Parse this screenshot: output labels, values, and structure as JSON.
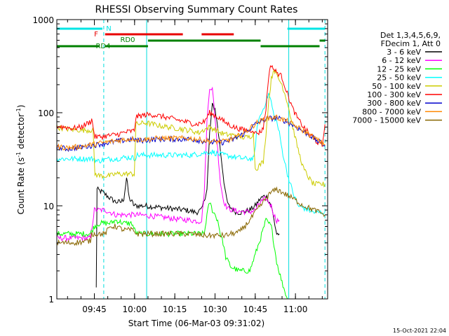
{
  "chart_data": {
    "type": "line",
    "title": "RHESSI Observing Summary Count Rates",
    "xlabel": "Start Time (06-Mar-03 09:31:02)",
    "ylabel_main": "Count Rate (s",
    "ylabel_sup": "-1",
    "ylabel_tail": " detector",
    "ylabel_end": ")",
    "y_scale": "log",
    "ylim": [
      1,
      1000
    ],
    "x_units": "minutes after 09:31:02",
    "xlim": [
      0,
      101
    ],
    "x_ticks": [
      {
        "t": 14,
        "label": "09:45"
      },
      {
        "t": 29,
        "label": "10:00"
      },
      {
        "t": 44,
        "label": "10:15"
      },
      {
        "t": 59,
        "label": "10:30"
      },
      {
        "t": 74,
        "label": "10:45"
      },
      {
        "t": 89,
        "label": "11:00"
      }
    ],
    "y_ticks": [
      {
        "v": 1,
        "label": "1"
      },
      {
        "v": 10,
        "label": "10"
      },
      {
        "v": 100,
        "label": "100"
      },
      {
        "v": 1000,
        "label": "1000"
      }
    ],
    "legend_header": [
      "Det 1,3,4,5,6,9,",
      "FDecim 1, Att 0"
    ],
    "legend_position": "right",
    "series": [
      {
        "name": "3 - 6 keV",
        "color": "#000000",
        "t": [
          14.7,
          15,
          17,
          20,
          22,
          24,
          25,
          26,
          27,
          28,
          28.9,
          33,
          40,
          48,
          52,
          54,
          56,
          57,
          58,
          59,
          60,
          61,
          62,
          63,
          64,
          65,
          66,
          67,
          69,
          72,
          74,
          76,
          78,
          80,
          81,
          82,
          83
        ],
        "v": [
          1.3,
          15,
          14,
          12,
          11,
          11,
          12,
          20,
          12,
          11,
          10,
          10,
          9.5,
          9,
          8.5,
          9,
          15,
          60,
          120,
          110,
          70,
          40,
          22,
          13,
          10,
          9.5,
          9,
          8.5,
          8.5,
          9,
          10,
          12,
          13,
          10,
          7,
          5,
          5
        ]
      },
      {
        "name": "6 - 12 keV",
        "color": "#ff00ff",
        "t": [
          0,
          12.5,
          14,
          18,
          22,
          26,
          28,
          30,
          35,
          40,
          45,
          50,
          53,
          54,
          55,
          56,
          57,
          58,
          59,
          60,
          61,
          62,
          63,
          64,
          65,
          68,
          72,
          74,
          76,
          78,
          80,
          81,
          82,
          83
        ],
        "v": [
          4.5,
          4.5,
          9,
          9,
          8,
          8,
          8,
          8,
          7.8,
          7.5,
          7.2,
          7,
          6.8,
          7,
          14,
          80,
          190,
          180,
          90,
          40,
          18,
          12,
          10,
          9.3,
          9.1,
          8.7,
          8.6,
          9,
          11,
          12,
          10,
          8,
          7,
          7
        ]
      },
      {
        "name": "12 - 25 keV",
        "color": "#00ff00",
        "t": [
          0,
          12.5,
          14,
          16,
          20,
          22,
          25,
          28,
          29,
          30,
          40,
          50,
          55,
          56,
          57,
          58,
          59,
          60,
          61,
          62,
          63,
          65,
          68,
          72,
          74,
          76,
          78,
          80,
          82,
          84,
          86
        ],
        "v": [
          5,
          5,
          6,
          6.5,
          6.5,
          7,
          6.5,
          6.5,
          5.5,
          5,
          5,
          5,
          5,
          8,
          11,
          9,
          8,
          7,
          5,
          4,
          2.8,
          2.2,
          2,
          2,
          3,
          4.5,
          7,
          6,
          2.5,
          1.5,
          1
        ]
      },
      {
        "name": "25 - 50 keV",
        "color": "#00ffff",
        "t": [
          0,
          14,
          15,
          17,
          20,
          22,
          25,
          28,
          29,
          30,
          35,
          40,
          45,
          50,
          55,
          58,
          60,
          65,
          70,
          72,
          73.5,
          75,
          77,
          79,
          80,
          81,
          82,
          83,
          84,
          86,
          88,
          90,
          96,
          98,
          100
        ],
        "v": [
          32,
          32,
          30,
          31,
          32,
          32,
          33,
          33,
          32,
          35,
          35,
          35,
          35,
          35,
          37,
          38,
          36,
          34,
          32,
          32,
          32,
          80,
          110,
          160,
          130,
          90,
          80,
          60,
          40,
          22,
          14,
          10,
          8.5,
          8.5,
          8.5
        ]
      },
      {
        "name": "50 - 100 keV",
        "color": "#cccc00",
        "t": [
          0,
          5,
          10,
          13.5,
          14.2,
          16,
          20,
          22,
          24,
          26,
          28.9,
          29.5,
          33,
          37,
          40,
          45,
          50,
          53,
          55,
          57,
          59,
          61,
          63,
          65,
          67,
          70,
          72,
          73.3,
          74,
          75,
          77,
          78,
          79,
          80,
          81,
          82,
          84,
          86,
          88,
          90,
          92,
          94,
          95,
          96,
          98,
          100
        ],
        "v": [
          70,
          66,
          65,
          65,
          22,
          21,
          21,
          22,
          22,
          22,
          22,
          75,
          78,
          74,
          71,
          68,
          64,
          61,
          66,
          70,
          66,
          61,
          58,
          58,
          56,
          54,
          55,
          60,
          25,
          26,
          30,
          60,
          130,
          230,
          300,
          250,
          200,
          130,
          70,
          40,
          25,
          20,
          18,
          17,
          17,
          17
        ]
      },
      {
        "name": "100 - 300 keV",
        "color": "#ff0000",
        "t": [
          0,
          3,
          6,
          9,
          12.5,
          13,
          14.2,
          16,
          20,
          22,
          24,
          26,
          28.9,
          29.5,
          33,
          36,
          40,
          44,
          48,
          52,
          55,
          57,
          60,
          63,
          66,
          69,
          72,
          73.3,
          74,
          76,
          77,
          78,
          79,
          80,
          81,
          82,
          83,
          84,
          86,
          88,
          90,
          92,
          94,
          96,
          98,
          99,
          100
        ],
        "v": [
          72,
          70,
          68,
          70,
          80,
          85,
          55,
          55,
          57,
          58,
          60,
          62,
          64,
          90,
          95,
          95,
          90,
          85,
          80,
          75,
          80,
          100,
          90,
          78,
          70,
          66,
          64,
          66,
          60,
          62,
          70,
          110,
          250,
          330,
          290,
          270,
          260,
          240,
          160,
          110,
          85,
          70,
          60,
          52,
          46,
          44,
          75
        ]
      },
      {
        "name": "300 - 800 keV",
        "color": "#0000cc",
        "t": [
          0,
          4,
          8,
          12,
          14.2,
          16,
          20,
          24,
          28.9,
          30,
          34,
          38,
          42,
          46,
          50,
          54,
          58,
          62,
          66,
          70,
          74,
          78,
          82,
          86,
          90,
          94,
          98,
          100
        ],
        "v": [
          42,
          41,
          42,
          44,
          45,
          46,
          48,
          50,
          52,
          50,
          51,
          52,
          52,
          52,
          52,
          50,
          48,
          48,
          52,
          60,
          75,
          86,
          88,
          80,
          68,
          58,
          48,
          45
        ]
      },
      {
        "name": "800 - 7000 keV",
        "color": "#ff8800",
        "t": [
          0,
          4,
          8,
          12,
          14.2,
          16,
          20,
          24,
          28.9,
          30,
          34,
          38,
          42,
          46,
          50,
          54,
          58,
          62,
          66,
          70,
          74,
          78,
          82,
          86,
          90,
          94,
          98,
          100
        ],
        "v": [
          43,
          42,
          43,
          45,
          46,
          47,
          49,
          51,
          53,
          51,
          52,
          53,
          53,
          53,
          53,
          51,
          49,
          49,
          53,
          61,
          76,
          87,
          89,
          81,
          69,
          59,
          49,
          46
        ]
      },
      {
        "name": "7000 - 15000 keV",
        "color": "#886600",
        "t": [
          0,
          5,
          10,
          12.5,
          13,
          15,
          18,
          20,
          22,
          25,
          28,
          30,
          35,
          40,
          45,
          50,
          55,
          60,
          63,
          65,
          68,
          70,
          72,
          74,
          76,
          78,
          80,
          82,
          84,
          86,
          88,
          90,
          92,
          94,
          96,
          98,
          100
        ],
        "v": [
          4,
          4,
          4.1,
          4.2,
          5,
          5,
          5,
          6,
          6,
          5.5,
          5.5,
          5,
          5,
          5,
          5,
          5,
          4.8,
          4.8,
          4.8,
          5,
          5.2,
          6,
          7,
          8.5,
          10,
          12,
          14,
          15,
          14,
          13,
          12,
          11,
          10,
          9.5,
          9,
          8.5,
          8
        ]
      }
    ],
    "flags": [
      {
        "label": "N",
        "color": "#00e5e5",
        "segments": [
          [
            0,
            17
          ],
          [
            86,
            100
          ]
        ]
      },
      {
        "label": "F",
        "color": "#e80000",
        "segments": [
          [
            18,
            47
          ],
          [
            54,
            66
          ]
        ]
      },
      {
        "label": "RD0",
        "color": "#008000",
        "segments": [
          [
            34,
            76
          ],
          [
            98,
            100
          ]
        ]
      },
      {
        "label": "RD4",
        "color": "#008000",
        "segments": [
          [
            0,
            16
          ],
          [
            18,
            34
          ],
          [
            76,
            98
          ]
        ]
      }
    ],
    "vlines": [
      {
        "t": 0,
        "color": "#00dddd",
        "style": "solid"
      },
      {
        "t": 17.5,
        "color": "#00dddd",
        "style": "dashed"
      },
      {
        "t": 33.5,
        "color": "#00dddd",
        "style": "solid"
      },
      {
        "t": 86.5,
        "color": "#00dddd",
        "style": "solid"
      },
      {
        "t": 100,
        "color": "#00dddd",
        "style": "dashed"
      }
    ],
    "timestamp": "15-Oct-2021 22:04"
  }
}
